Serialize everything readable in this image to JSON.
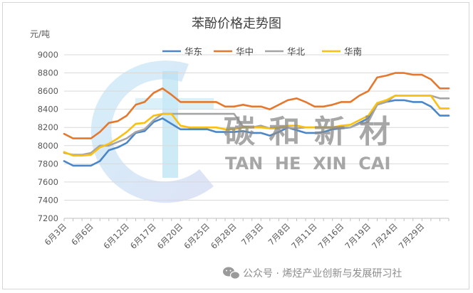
{
  "chart_data": {
    "type": "line",
    "title": "苯酚价格走势图",
    "ylabel": "元/吨",
    "xlabel": "",
    "ylim": [
      7200,
      9000
    ],
    "yticks": [
      7200,
      7400,
      7600,
      7800,
      8000,
      8200,
      8400,
      8600,
      8800,
      9000
    ],
    "grid": "horizontal",
    "legend_position": "top",
    "x": [
      "6月3日",
      "6月4日",
      "6月5日",
      "6月6日",
      "6月7日",
      "6月10日",
      "6月11日",
      "6月12日",
      "6月13日",
      "6月14日",
      "6月17日",
      "6月18日",
      "6月19日",
      "6月20日",
      "6月21日",
      "6月24日",
      "6月25日",
      "6月26日",
      "6月27日",
      "6月28日",
      "7月1日",
      "7月2日",
      "7月3日",
      "7月4日",
      "7月5日",
      "7月8日",
      "7月9日",
      "7月10日",
      "7月11日",
      "7月12日",
      "7月15日",
      "7月16日",
      "7月17日",
      "7月18日",
      "7月19日",
      "7月22日",
      "7月23日",
      "7月24日",
      "7月25日",
      "7月26日",
      "7月29日",
      "7月30日",
      "7月31日",
      "8月1日"
    ],
    "xtick_labels": [
      "6月3日",
      "6月6日",
      "6月12日",
      "6月17日",
      "6月20日",
      "6月25日",
      "6月28日",
      "7月3日",
      "7月8日",
      "7月11日",
      "7月16日",
      "7月19日",
      "7月24日",
      "7月29日"
    ],
    "series": [
      {
        "name": "华东",
        "color": "#4a86c8",
        "values": [
          7830,
          7780,
          7780,
          7780,
          7830,
          7950,
          7980,
          8030,
          8140,
          8160,
          8260,
          8300,
          8240,
          8180,
          8180,
          8180,
          8180,
          8150,
          8150,
          8150,
          8160,
          8140,
          8140,
          8110,
          8150,
          8200,
          8170,
          8140,
          8140,
          8150,
          8180,
          8190,
          8200,
          8250,
          8300,
          8450,
          8480,
          8500,
          8500,
          8480,
          8480,
          8430,
          8330,
          8330
        ]
      },
      {
        "name": "华中",
        "color": "#e5782d",
        "values": [
          8130,
          8080,
          8080,
          8080,
          8150,
          8250,
          8270,
          8330,
          8450,
          8480,
          8580,
          8630,
          8560,
          8480,
          8480,
          8480,
          8480,
          8480,
          8430,
          8430,
          8450,
          8430,
          8430,
          8400,
          8450,
          8500,
          8520,
          8480,
          8430,
          8430,
          8450,
          8480,
          8480,
          8550,
          8600,
          8750,
          8770,
          8800,
          8800,
          8780,
          8780,
          8730,
          8630,
          8630
        ]
      },
      {
        "name": "华北",
        "color": "#a5a5a5",
        "values": [
          7920,
          7900,
          7900,
          7920,
          8000,
          8000,
          8040,
          8080,
          8150,
          8180,
          8280,
          8350,
          8350,
          8350,
          8350,
          8350,
          8350,
          8350,
          8350,
          8350,
          8210,
          8200,
          8220,
          8190,
          8190,
          8200,
          8190,
          8200,
          8200,
          8200,
          8200,
          8200,
          8200,
          8240,
          8260,
          8450,
          8480,
          8550,
          8550,
          8550,
          8550,
          8550,
          8520,
          8520
        ]
      },
      {
        "name": "华南",
        "color": "#fbbf0f",
        "values": [
          7930,
          7890,
          7890,
          7900,
          7980,
          8020,
          8080,
          8150,
          8240,
          8250,
          8330,
          8350,
          8350,
          8220,
          8200,
          8200,
          8200,
          8200,
          8180,
          8180,
          8200,
          8200,
          8200,
          8190,
          8200,
          8220,
          8220,
          8200,
          8200,
          8200,
          8200,
          8220,
          8230,
          8280,
          8330,
          8470,
          8500,
          8550,
          8550,
          8550,
          8550,
          8550,
          8410,
          8410
        ]
      }
    ]
  },
  "watermark": {
    "main": "碳 和 新 材",
    "sub": "TAN  HE  XIN  CAI"
  },
  "footer": {
    "text": "公众号 · 烯烃产业创新与发展研习社",
    "icon": "wechat-icon"
  }
}
